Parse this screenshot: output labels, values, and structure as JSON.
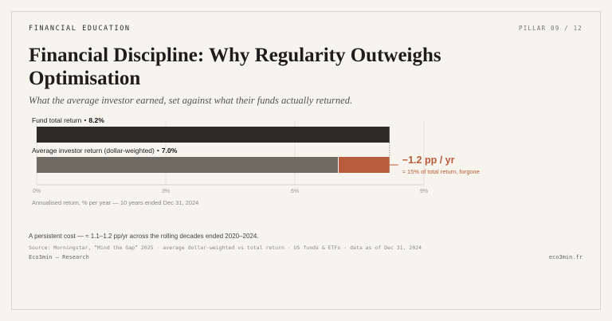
{
  "header": {
    "kicker": "FINANCIAL EDUCATION",
    "pillar": "PILLAR 09 / 12"
  },
  "title": "Financial Discipline: Why Regularity Outweighs Optimisation",
  "subtitle": "What the average investor earned, set against what their funds actually returned.",
  "chart_data": {
    "type": "bar",
    "orientation": "horizontal",
    "categories": [
      "Fund total return",
      "Average investor return (dollar-weighted)"
    ],
    "values": [
      8.2,
      7.0
    ],
    "value_labels": [
      "8.2%",
      "7.0%"
    ],
    "colors": [
      "#2b2a27",
      "#6f6b63"
    ],
    "gap": {
      "value": -1.2,
      "label": "−1.2 pp / yr",
      "note": "≈ 15% of total return, forgone",
      "color": "#b85c3c"
    },
    "xlim": [
      0,
      9
    ],
    "xticks": [
      {
        "value": 0,
        "label": "0%"
      },
      {
        "value": 3,
        "label": "3%"
      },
      {
        "value": 6,
        "label": "6%"
      },
      {
        "value": 9,
        "label": "9%"
      }
    ],
    "grid": true,
    "x_label": "Annualised return, % per year — 10 years ended Dec 31, 2024"
  },
  "footnote": "A persistent cost — ≈ 1.1–1.2 pp/yr across the rolling decades ended 2020–2024.",
  "source": "Source: Morningstar, “Mind the Gap” 2025 · average dollar-weighted vs total return · US funds & ETFs · data as of Dec 31, 2024",
  "footer": {
    "left": "Eco3min — Research",
    "right": "eco3min.fr"
  }
}
